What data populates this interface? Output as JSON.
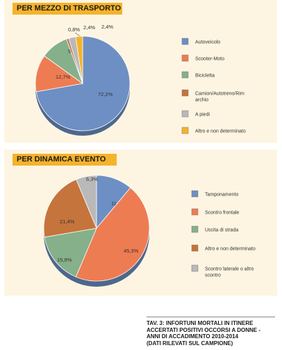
{
  "chart_data": [
    {
      "type": "pie",
      "title": "PER MEZZO DI TRASPORTO",
      "categories": [
        "Autoveicolo",
        "Scooter-Moto",
        "Bicicletta",
        "Camion/Autotreno/Rimorchio",
        "A piedi",
        "Altro e non determinato"
      ],
      "values": [
        72.2,
        12.7,
        9.5,
        0.8,
        2.4,
        2.4
      ],
      "labels": [
        "72,2%",
        "12,7%",
        "9,5%",
        "0,8%",
        "2,4%",
        "2,4%"
      ],
      "legend_labels": [
        "Autoveicolo",
        "Scooter-Moto",
        "Bicicletta",
        "Camion/Autotreno/Rim archio",
        "A piedi",
        "Altro e non determinato"
      ],
      "colors": [
        "#6d8fc4",
        "#ee7c52",
        "#85b08a",
        "#c5743c",
        "#b9b9b9",
        "#f5b32b"
      ],
      "legend_position": "right"
    },
    {
      "type": "pie",
      "title": "PER DINAMICA EVENTO",
      "categories": [
        "Tamponamento",
        "Scontro frontale",
        "Uscita di strada",
        "Altro e non determinato",
        "Scontro laterale o altro scontro"
      ],
      "values": [
        11.1,
        45.3,
        15.9,
        21.4,
        6.3
      ],
      "labels": [
        "11,1%",
        "45,3%",
        "15,9%",
        "21,4%",
        "6,3%"
      ],
      "legend_labels": [
        "Tamponamento",
        "Scontro frontale",
        "Uscita di strada",
        "Altro e non determinato",
        "Scontro laterale o altro scontro"
      ],
      "colors": [
        "#6d8fc4",
        "#ee7c52",
        "#85b08a",
        "#c5743c",
        "#b9b9b9"
      ],
      "legend_position": "right"
    }
  ],
  "caption": {
    "lines": [
      "TAV. 3: INFORTUNI MORTALI IN ITINERE",
      "ACCERTATI POSITIVI  OCCORSI A DONNE -",
      "ANNI DI ACCADIMENTO 2010-2014",
      "(DATI RILEVATI SUL CAMPIONE)"
    ]
  }
}
